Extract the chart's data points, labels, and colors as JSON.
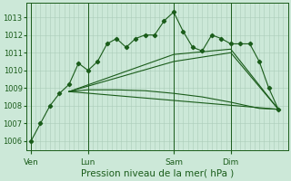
{
  "bg_color": "#cce8d8",
  "grid_color": "#aaccb8",
  "line_color": "#1a5c1a",
  "xlabel": "Pression niveau de la mer( hPa )",
  "xlabel_fontsize": 7.5,
  "ylim": [
    1005.5,
    1013.8
  ],
  "yticks": [
    1006,
    1007,
    1008,
    1009,
    1010,
    1011,
    1012,
    1013
  ],
  "ytick_fontsize": 6,
  "xtick_labels": [
    "Ven",
    "Lun",
    "Sam",
    "Dim"
  ],
  "xtick_positions": [
    0,
    12,
    30,
    42
  ],
  "vline_positions": [
    0,
    12,
    30,
    42
  ],
  "xlim": [
    -1,
    54
  ],
  "num_x_gridlines": 54,
  "series1_x": [
    0,
    2,
    4,
    6,
    8,
    10,
    12,
    14,
    16,
    18,
    20,
    22,
    24,
    26,
    28,
    30,
    32,
    34,
    36,
    38,
    40,
    42,
    44,
    46,
    48,
    50,
    52
  ],
  "series1_y": [
    1006.0,
    1007.0,
    1008.0,
    1008.7,
    1009.2,
    1010.4,
    1010.0,
    1010.5,
    1011.5,
    1011.8,
    1011.3,
    1011.8,
    1012.0,
    1012.0,
    1012.8,
    1013.3,
    1012.2,
    1011.3,
    1011.1,
    1012.0,
    1011.8,
    1011.5,
    1011.5,
    1011.5,
    1010.5,
    1009.0,
    1007.8
  ],
  "series2_x": [
    8,
    12,
    18,
    24,
    30,
    36,
    42,
    48,
    52
  ],
  "series2_y": [
    1008.8,
    1008.9,
    1008.9,
    1008.85,
    1008.7,
    1008.5,
    1008.2,
    1007.85,
    1007.8
  ],
  "series3_x": [
    8,
    30,
    42,
    52
  ],
  "series3_y": [
    1008.8,
    1010.5,
    1011.0,
    1007.8
  ],
  "series4_x": [
    8,
    30,
    42,
    52
  ],
  "series4_y": [
    1008.8,
    1010.9,
    1011.2,
    1007.8
  ],
  "series5_x": [
    8,
    52
  ],
  "series5_y": [
    1008.8,
    1007.8
  ]
}
